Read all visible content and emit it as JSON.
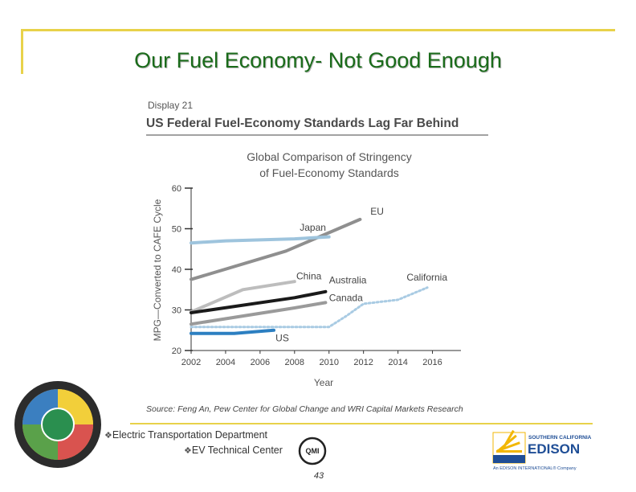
{
  "slide": {
    "title": "Our Fuel Economy- Not Good Enough",
    "page_number": "43"
  },
  "footer": {
    "line1": "Electric Transportation Department",
    "line2": "EV Technical Center",
    "bullet": "❖"
  },
  "edison_logo": {
    "line1": "SOUTHERN CALIFORNIA",
    "line2": "EDISON",
    "line3": "An EDISON INTERNATIONAL® Company",
    "color": "#1f4e96",
    "accent": "#f2b705"
  },
  "qmi_logo": {
    "text": "QMI"
  },
  "chart_data": {
    "type": "line",
    "display_label": "Display 21",
    "headline": "US Federal Fuel-Economy Standards Lag Far Behind",
    "title": "Global Comparison of Stringency",
    "subtitle": "of Fuel-Economy Standards",
    "ylabel": "MPG—Converted to CAFE Cycle",
    "xlabel": "Year",
    "xlim": [
      2002,
      2017
    ],
    "ylim": [
      20,
      60
    ],
    "x_ticks": [
      2002,
      2004,
      2006,
      2008,
      2010,
      2012,
      2014,
      2016
    ],
    "y_ticks": [
      20,
      30,
      40,
      50,
      60
    ],
    "source": "Source: Feng An, Pew Center for Global Change and WRI Capital Markets Research",
    "series": [
      {
        "name": "EU",
        "color": "#8f8f8f",
        "dashed": false,
        "points": [
          [
            2002,
            37.5
          ],
          [
            2007.5,
            44.5
          ],
          [
            2011.8,
            52.3
          ]
        ]
      },
      {
        "name": "Japan",
        "color": "#9ec4dd",
        "dashed": false,
        "points": [
          [
            2002,
            46.5
          ],
          [
            2004,
            47
          ],
          [
            2008,
            47.5
          ],
          [
            2010,
            48
          ]
        ]
      },
      {
        "name": "China",
        "color": "#bdbdbd",
        "dashed": false,
        "points": [
          [
            2002,
            29.5
          ],
          [
            2005,
            35
          ],
          [
            2008,
            37
          ]
        ]
      },
      {
        "name": "Australia",
        "color": "#1a1a1a",
        "dashed": false,
        "points": [
          [
            2002,
            29.3
          ],
          [
            2008,
            33
          ],
          [
            2009.8,
            34.5
          ]
        ]
      },
      {
        "name": "Canada",
        "color": "#9a9a9a",
        "dashed": false,
        "points": [
          [
            2002,
            26.5
          ],
          [
            2008,
            30.5
          ],
          [
            2009.8,
            31.8
          ]
        ]
      },
      {
        "name": "California",
        "color": "#a9cbe3",
        "dashed": true,
        "points": [
          [
            2002,
            25.8
          ],
          [
            2010,
            25.8
          ],
          [
            2011,
            28.5
          ],
          [
            2012,
            31.5
          ],
          [
            2014,
            32.5
          ],
          [
            2015.7,
            35.5
          ]
        ]
      },
      {
        "name": "US",
        "color": "#2c7fc1",
        "dashed": false,
        "points": [
          [
            2002,
            24.2
          ],
          [
            2004.5,
            24.2
          ],
          [
            2006.8,
            25
          ]
        ]
      }
    ],
    "labels": [
      {
        "text": "EU",
        "x": 2012.4,
        "y": 53.5
      },
      {
        "text": "Japan",
        "x": 2008.3,
        "y": 49.5
      },
      {
        "text": "China",
        "x": 2008.1,
        "y": 37.5
      },
      {
        "text": "Australia",
        "x": 2010,
        "y": 36.5
      },
      {
        "text": "Canada",
        "x": 2010,
        "y": 32.2
      },
      {
        "text": "California",
        "x": 2014.5,
        "y": 37.2
      },
      {
        "text": "US",
        "x": 2006.9,
        "y": 22.3
      }
    ]
  }
}
